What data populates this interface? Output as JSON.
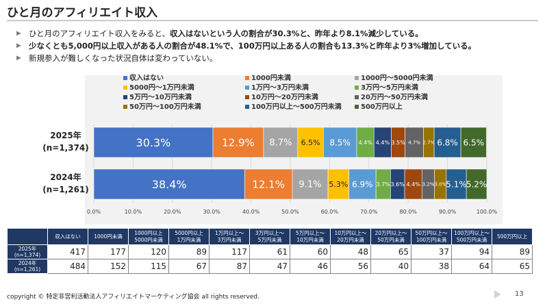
{
  "page": {
    "title": "ひと月のアフィリエイト収入",
    "bullets": [
      {
        "text": "ひと月のアフィリエイト収入をみると、",
        "bold_text": "収入はないという人の割合が30.3%と、昨年より8.1%減少している。"
      },
      {
        "text": "",
        "bold_text": "少なくとも5,000円以上収入がある人の割合が48.1%で、100万円以上ある人の割合も13.3%と昨年より3%増加している。"
      },
      {
        "text": "新規参入が難しくなった状況自体は変わっていない。",
        "bold_text": ""
      }
    ],
    "copyright": "copyright © 特定非営利活動法人アフィリエイトマーケティング協会 all rights reserved.",
    "page_number": "13"
  },
  "chart_data": {
    "type": "bar",
    "orientation": "horizontal",
    "stacked": true,
    "categories": [
      "2025年\n(n=1,374)",
      "2024年\n(n=1,261)"
    ],
    "x_ticks": [
      "0.0%",
      "10.0%",
      "20.0%",
      "30.0%",
      "40.0%",
      "50.0%",
      "60.0%",
      "70.0%",
      "80.0%",
      "90.0%",
      "100.0%"
    ],
    "xlim": [
      0,
      100
    ],
    "legend_position": "top",
    "series": [
      {
        "name": "収入はない",
        "color": "#4472c4",
        "values": [
          30.3,
          38.4
        ],
        "labels": [
          "30.3%",
          "38.4%"
        ],
        "label_color": "#ffffff",
        "label_size": 16
      },
      {
        "name": "1000円未満",
        "color": "#ed7d31",
        "values": [
          12.9,
          12.1
        ],
        "labels": [
          "12.9%",
          "12.1%"
        ],
        "label_color": "#ffffff",
        "label_size": 15
      },
      {
        "name": "1000円～5000円未満",
        "color": "#a5a5a5",
        "values": [
          8.7,
          9.1
        ],
        "labels": [
          "8.7%",
          "9.1%"
        ],
        "label_color": "#ffffff",
        "label_size": 13
      },
      {
        "name": "5000円～1万円未満",
        "color": "#ffc000",
        "values": [
          6.5,
          5.3
        ],
        "labels": [
          "6.5%",
          "5.3%"
        ],
        "label_color": "#222222",
        "label_size": 11
      },
      {
        "name": "1万円～3万円未満",
        "color": "#5b9bd5",
        "values": [
          8.5,
          6.9
        ],
        "labels": [
          "8.5%",
          "6.9%"
        ],
        "label_color": "#ffffff",
        "label_size": 12
      },
      {
        "name": "3万円～5万円未満",
        "color": "#70ad47",
        "values": [
          4.4,
          3.7
        ],
        "labels": [
          "4.4%",
          "3.7%"
        ],
        "label_color": "#ffffff",
        "label_size": 8
      },
      {
        "name": "5万円～10万円未満",
        "color": "#264478",
        "values": [
          4.4,
          3.6
        ],
        "labels": [
          "4.4%",
          "3.6%"
        ],
        "label_color": "#ffffff",
        "label_size": 8
      },
      {
        "name": "10万円～20万円未満",
        "color": "#9e480e",
        "values": [
          3.5,
          4.4
        ],
        "labels": [
          "3.5%",
          "4.4%"
        ],
        "label_color": "#ffffff",
        "label_size": 8
      },
      {
        "name": "20万円～50万円未満",
        "color": "#636363",
        "values": [
          4.7,
          3.2
        ],
        "labels": [
          "4.7%",
          "3.2%"
        ],
        "label_color": "#ffffff",
        "label_size": 7
      },
      {
        "name": "50万円～100万円未満",
        "color": "#997300",
        "values": [
          2.7,
          3.0
        ],
        "labels": [
          "2.7%",
          "3.0%"
        ],
        "label_color": "#ffffff",
        "label_size": 7
      },
      {
        "name": "100万円以上～500万円未満",
        "color": "#255e91",
        "values": [
          6.8,
          5.1
        ],
        "labels": [
          "6.8%",
          "5.1%"
        ],
        "label_color": "#ffffff",
        "label_size": 12
      },
      {
        "name": "500万円以上",
        "color": "#43682b",
        "values": [
          6.5,
          5.2
        ],
        "labels": [
          "6.5%",
          "5.2%"
        ],
        "label_color": "#ffffff",
        "label_size": 12
      }
    ]
  },
  "table": {
    "corner": "",
    "headers": [
      "収入はない",
      "1000円未満",
      "1000円以上\n5000円未満",
      "5000円以上\n1万円未満",
      "1万円以上～\n3万円未満",
      "3万円以上～\n5万円未満",
      "5万円以上～\n10万円未満",
      "10万円以上～\n20万円未満",
      "20万円以上～\n50万円未満",
      "50万円以上～\n100万円未満",
      "100万円以上～\n500万円未満",
      "500万円以上"
    ],
    "rows": [
      {
        "label": "2025年\n(n=1,374)",
        "values": [
          "417",
          "177",
          "120",
          "89",
          "117",
          "61",
          "60",
          "48",
          "65",
          "37",
          "94",
          "89"
        ]
      },
      {
        "label": "2024年\n(n=1,261)",
        "values": [
          "484",
          "152",
          "115",
          "67",
          "87",
          "47",
          "46",
          "56",
          "40",
          "38",
          "64",
          "65"
        ]
      }
    ]
  }
}
